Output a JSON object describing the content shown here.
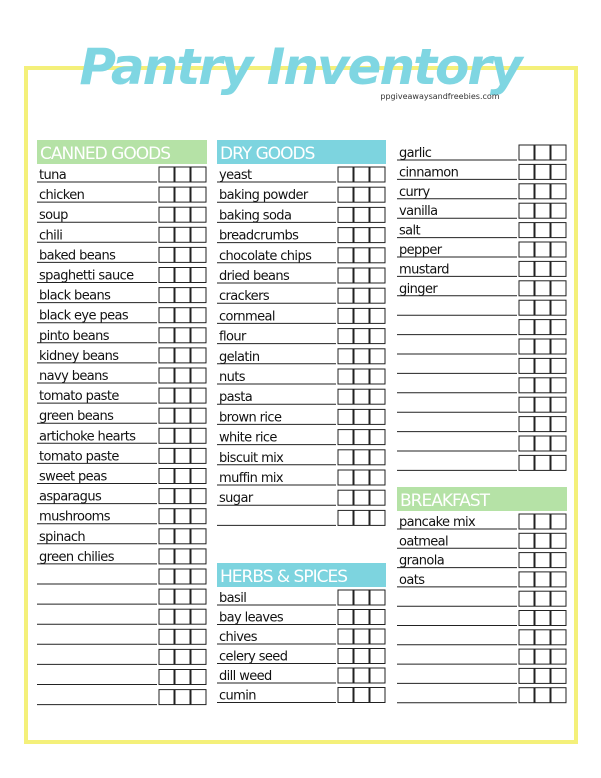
{
  "header": {
    "title": "Pantry Inventory",
    "website": "ppgiveawaysandfreebies.com"
  },
  "columns": [
    {
      "sections": [
        {
          "title": "CANNED GOODS",
          "items": [
            "tuna",
            "chicken",
            "soup",
            "chili",
            "baked beans",
            "spaghetti sauce",
            "black beans",
            "black eye peas",
            "pinto beans",
            "kidney beans",
            "navy beans",
            "tomato paste",
            "green beans",
            "artichoke hearts",
            "tomato paste",
            "sweet peas",
            "asparagus",
            "mushrooms",
            "spinach",
            "green chilies"
          ]
        }
      ]
    },
    {
      "sections": [
        {
          "title": "DRY GOODS",
          "items": [
            "yeast",
            "baking powder",
            "baking soda",
            "breadcrumbs",
            "chocolate chips",
            "dried beans",
            "crackers",
            "cornmeal",
            "flour",
            "gelatin",
            "nuts",
            "pasta",
            "brown rice",
            "white rice",
            "biscuit mix",
            "muffin mix",
            "sugar"
          ]
        },
        {
          "title": "HERBS & SPICES",
          "items": [
            "basil",
            "bay leaves",
            "chives",
            "celery seed",
            "dill weed",
            "cumin"
          ]
        }
      ]
    },
    {
      "sections": [
        {
          "items": [
            "garlic",
            "cinnamon",
            "curry",
            "vanilla",
            "salt",
            "pepper",
            "mustard",
            "ginger"
          ]
        },
        {
          "title": "BREAKFAST",
          "items": [
            "pancake mix",
            "oatmeal",
            "granola",
            "oats"
          ]
        }
      ]
    }
  ]
}
